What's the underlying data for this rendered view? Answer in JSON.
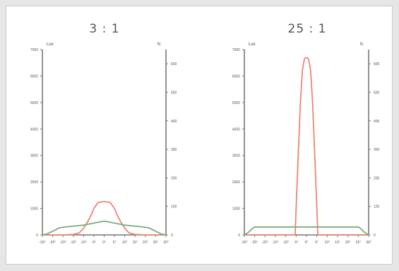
{
  "chart_data": [
    {
      "type": "line",
      "title": "3 : 1",
      "y_left_unit": "Lux",
      "y_right_unit": "fc",
      "x_ticks": [
        "-30°",
        "-25°",
        "-20°",
        "-15°",
        "-10°",
        "-5°",
        "0°",
        "5°",
        "10°",
        "15°",
        "20°",
        "25°",
        "30°"
      ],
      "y_left_ticks": [
        0,
        1000,
        2000,
        3000,
        4000,
        5000,
        6000,
        7000
      ],
      "y_right_ticks": [
        0,
        100,
        200,
        300,
        400,
        500,
        600
      ],
      "xlim": [
        -30,
        30
      ],
      "ylim_left": [
        0,
        7000
      ],
      "ylim_right": [
        0,
        650
      ],
      "grid": false,
      "series": [
        {
          "color": "#e8877a",
          "x": [
            -30,
            -20,
            -15,
            -12,
            -10,
            -8,
            -6,
            -5,
            -3,
            0,
            3,
            5,
            6,
            8,
            10,
            12,
            15,
            20,
            30
          ],
          "y": [
            0,
            0,
            20,
            80,
            250,
            500,
            800,
            1000,
            1220,
            1260,
            1220,
            1000,
            800,
            500,
            250,
            80,
            20,
            0,
            0
          ]
        },
        {
          "color": "#7faa7f",
          "x": [
            -30,
            -28,
            -25,
            -22,
            -20,
            -15,
            -10,
            -5,
            0,
            5,
            10,
            15,
            20,
            22,
            25,
            28,
            30
          ],
          "y": [
            0,
            30,
            140,
            260,
            290,
            330,
            370,
            450,
            520,
            450,
            370,
            330,
            290,
            260,
            140,
            30,
            0
          ]
        }
      ]
    },
    {
      "type": "line",
      "title": "25 : 1",
      "y_left_unit": "Lux",
      "y_right_unit": "fc",
      "x_ticks": [
        "-30°",
        "-25°",
        "-20°",
        "-15°",
        "-10°",
        "-5°",
        "0°",
        "5°",
        "10°",
        "15°",
        "20°",
        "25°",
        "30°"
      ],
      "y_left_ticks": [
        0,
        1000,
        2000,
        3000,
        4000,
        5000,
        6000,
        7000
      ],
      "y_right_ticks": [
        0,
        100,
        200,
        300,
        400,
        500,
        600
      ],
      "xlim": [
        -30,
        30
      ],
      "ylim_left": [
        0,
        7000
      ],
      "ylim_right": [
        0,
        650
      ],
      "grid": false,
      "series": [
        {
          "color": "#e8877a",
          "x": [
            -30,
            -5.5,
            -5,
            -4,
            -3,
            -2,
            -1,
            0,
            1,
            2,
            3,
            4,
            5,
            5.5,
            30
          ],
          "y": [
            0,
            0,
            1000,
            3000,
            4900,
            6200,
            6650,
            6700,
            6650,
            6200,
            4900,
            3000,
            1000,
            0,
            0
          ]
        },
        {
          "color": "#7faa7f",
          "x": [
            -30,
            -28,
            -26,
            -25,
            -20,
            -10,
            0,
            10,
            20,
            25,
            26,
            28,
            30
          ],
          "y": [
            0,
            100,
            250,
            300,
            300,
            300,
            300,
            300,
            300,
            300,
            250,
            100,
            0
          ]
        }
      ]
    }
  ]
}
